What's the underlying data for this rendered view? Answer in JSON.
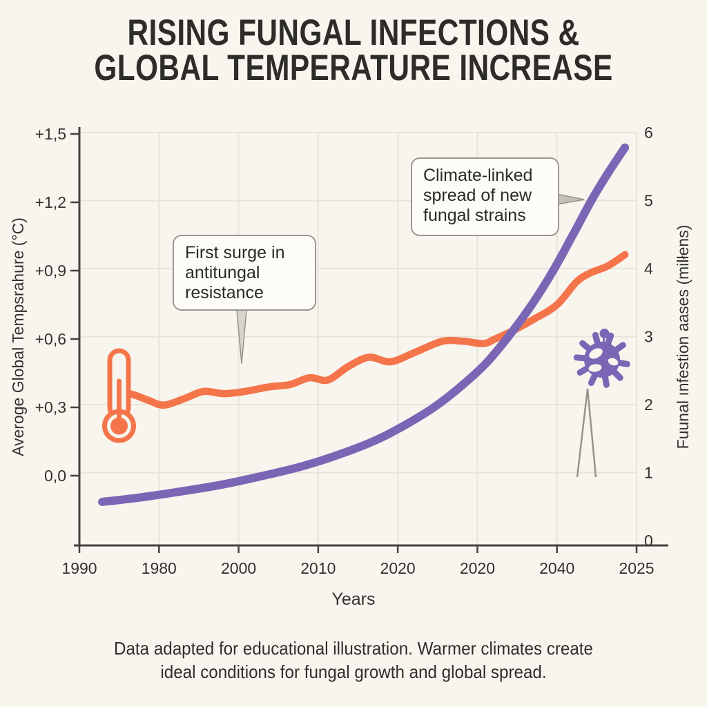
{
  "title": {
    "line1": "RISING FUNGAL INFECTIONS &",
    "line2": "GLOBAL TEMPERATURE INCREASE"
  },
  "callouts": [
    {
      "id": "antifungal-resistance",
      "text": "First surge in antitungal resistance"
    },
    {
      "id": "climate-linked-spread",
      "text": "Climate-linked spread of new fungal strains"
    }
  ],
  "footer": {
    "line1": "Data adapted for educational illustration. Warmer climates create",
    "line2": "ideal conditions for fungal growth and global spread."
  },
  "icons": [
    {
      "name": "thermometer-icon",
      "meaning": "temperature series marker"
    },
    {
      "name": "virus-icon",
      "meaning": "fungal pathogen marker"
    }
  ],
  "colors": {
    "background": "#F8F5EE",
    "temperature": "#F5754B",
    "infections": "#7B66B5",
    "grid": "#E7E4DB",
    "axis": "#44423E",
    "text": "#33312D",
    "callout_border": "#9A988F",
    "callout_fill": "#FDFCF8",
    "pointer_fill": "#D6D4CC",
    "pointer_fill_dark": "#C2C0B8",
    "pointer_stroke": "#95938B"
  },
  "chart_data": {
    "type": "line",
    "title": "Rising fungal infections & global temperature increase",
    "x_axis": {
      "label": "Years",
      "tick_labels": [
        "1990",
        "1980",
        "2000",
        "2010",
        "2020",
        "2020",
        "2040",
        "2025"
      ]
    },
    "y_axis_left": {
      "label": "Averoge Global Tempsrahure (°C)",
      "tick_labels": [
        "+1,5",
        "+1,2",
        "+0,9",
        "+0,6",
        "+0,3",
        "0,0"
      ],
      "tick_values": [
        1.5,
        1.2,
        0.9,
        0.6,
        0.3,
        0.0
      ],
      "range": [
        -0.3,
        1.51
      ],
      "grid": true
    },
    "y_axis_right": {
      "label": "Fuunal ınfestion aases (milłens)",
      "tick_labels": [
        "6",
        "5",
        "4",
        "3",
        "2",
        "1",
        "0"
      ],
      "tick_values": [
        6,
        5,
        4,
        3,
        2,
        1,
        0
      ],
      "range": [
        -0.07,
        6.0
      ]
    },
    "legend": "none",
    "series": [
      {
        "name": "Average global temperature",
        "axis": "left",
        "unit": "°C",
        "color_key": "temperature",
        "points": [
          [
            0.068,
            0.35
          ],
          [
            0.09,
            0.36
          ],
          [
            0.125,
            0.33
          ],
          [
            0.152,
            0.31
          ],
          [
            0.19,
            0.34
          ],
          [
            0.223,
            0.37
          ],
          [
            0.26,
            0.36
          ],
          [
            0.297,
            0.37
          ],
          [
            0.341,
            0.39
          ],
          [
            0.378,
            0.4
          ],
          [
            0.413,
            0.43
          ],
          [
            0.446,
            0.42
          ],
          [
            0.483,
            0.48
          ],
          [
            0.52,
            0.52
          ],
          [
            0.558,
            0.5
          ],
          [
            0.601,
            0.54
          ],
          [
            0.651,
            0.59
          ],
          [
            0.69,
            0.59
          ],
          [
            0.725,
            0.58
          ],
          [
            0.746,
            0.6
          ],
          [
            0.781,
            0.64
          ],
          [
            0.818,
            0.69
          ],
          [
            0.857,
            0.75
          ],
          [
            0.892,
            0.85
          ],
          [
            0.917,
            0.89
          ],
          [
            0.948,
            0.92
          ],
          [
            0.979,
            0.97
          ]
        ]
      },
      {
        "name": "Fungal infection cases",
        "axis": "right",
        "unit": "millions",
        "color_key": "infections",
        "points": [
          [
            0.041,
            0.57
          ],
          [
            0.105,
            0.63
          ],
          [
            0.18,
            0.72
          ],
          [
            0.254,
            0.82
          ],
          [
            0.328,
            0.95
          ],
          [
            0.403,
            1.1
          ],
          [
            0.471,
            1.28
          ],
          [
            0.533,
            1.48
          ],
          [
            0.589,
            1.72
          ],
          [
            0.638,
            1.97
          ],
          [
            0.685,
            2.27
          ],
          [
            0.729,
            2.6
          ],
          [
            0.771,
            3.01
          ],
          [
            0.812,
            3.47
          ],
          [
            0.849,
            3.95
          ],
          [
            0.886,
            4.5
          ],
          [
            0.921,
            5.03
          ],
          [
            0.95,
            5.42
          ],
          [
            0.979,
            5.78
          ]
        ]
      }
    ]
  }
}
